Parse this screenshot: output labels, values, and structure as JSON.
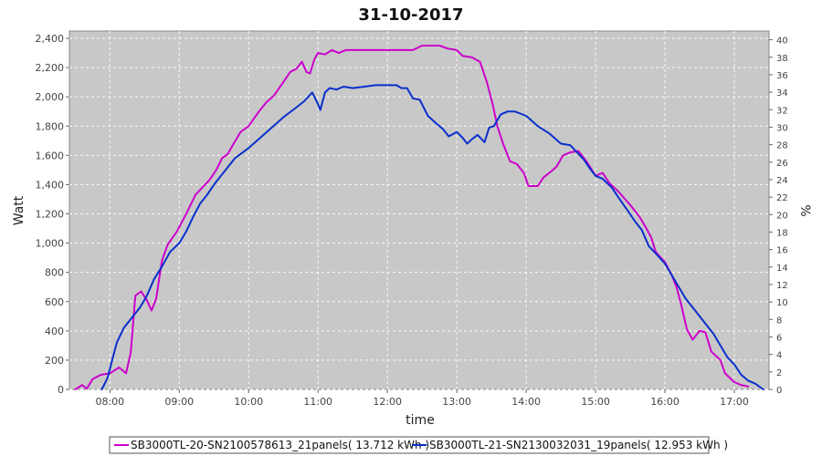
{
  "chart_data": {
    "type": "line",
    "title": "31-10-2017",
    "xlabel": "time",
    "ylabel": "Watt",
    "ylabel_right": "%",
    "xlim": [
      "07:25",
      "17:30"
    ],
    "ylim": [
      0,
      2450
    ],
    "ylim_right": [
      0,
      41
    ],
    "x_ticks": [
      "08:00",
      "09:00",
      "10:00",
      "11:00",
      "12:00",
      "13:00",
      "14:00",
      "15:00",
      "16:00",
      "17:00"
    ],
    "y_ticks": [
      "0",
      "200",
      "400",
      "600",
      "800",
      "1,000",
      "1,200",
      "1,400",
      "1,600",
      "1,800",
      "2,000",
      "2,200",
      "2,400"
    ],
    "y_tick_values": [
      0,
      200,
      400,
      600,
      800,
      1000,
      1200,
      1400,
      1600,
      1800,
      2000,
      2200,
      2400
    ],
    "y_right_ticks": [
      0,
      2,
      4,
      6,
      8,
      10,
      12,
      14,
      16,
      18,
      20,
      22,
      24,
      26,
      28,
      30,
      32,
      34,
      36,
      38,
      40
    ],
    "grid": true,
    "legend_position": "bottom",
    "plot_background": "#c8c8c8",
    "series": [
      {
        "name": "SB3000TL-20-SN2100578613_21panels( 13.712 kWh )",
        "color": "#cc00cc",
        "points": [
          [
            "07:30",
            0
          ],
          [
            "07:36",
            30
          ],
          [
            "07:40",
            5
          ],
          [
            "07:45",
            70
          ],
          [
            "07:52",
            100
          ],
          [
            "08:00",
            110
          ],
          [
            "08:08",
            150
          ],
          [
            "08:14",
            110
          ],
          [
            "08:18",
            250
          ],
          [
            "08:22",
            640
          ],
          [
            "08:27",
            670
          ],
          [
            "08:32",
            610
          ],
          [
            "08:36",
            540
          ],
          [
            "08:40",
            620
          ],
          [
            "08:45",
            880
          ],
          [
            "08:50",
            990
          ],
          [
            "08:58",
            1080
          ],
          [
            "09:06",
            1200
          ],
          [
            "09:14",
            1330
          ],
          [
            "09:20",
            1380
          ],
          [
            "09:26",
            1430
          ],
          [
            "09:32",
            1500
          ],
          [
            "09:37",
            1580
          ],
          [
            "09:42",
            1610
          ],
          [
            "09:47",
            1680
          ],
          [
            "09:53",
            1760
          ],
          [
            "10:00",
            1800
          ],
          [
            "10:08",
            1890
          ],
          [
            "10:15",
            1960
          ],
          [
            "10:22",
            2010
          ],
          [
            "10:30",
            2100
          ],
          [
            "10:36",
            2170
          ],
          [
            "10:41",
            2190
          ],
          [
            "10:46",
            2240
          ],
          [
            "10:50",
            2170
          ],
          [
            "10:53",
            2160
          ],
          [
            "10:57",
            2260
          ],
          [
            "11:00",
            2300
          ],
          [
            "11:06",
            2290
          ],
          [
            "11:12",
            2320
          ],
          [
            "11:18",
            2300
          ],
          [
            "11:24",
            2320
          ],
          [
            "11:40",
            2320
          ],
          [
            "12:00",
            2320
          ],
          [
            "12:22",
            2320
          ],
          [
            "12:30",
            2350
          ],
          [
            "12:45",
            2350
          ],
          [
            "12:52",
            2330
          ],
          [
            "13:00",
            2320
          ],
          [
            "13:05",
            2280
          ],
          [
            "13:13",
            2270
          ],
          [
            "13:20",
            2240
          ],
          [
            "13:26",
            2100
          ],
          [
            "13:31",
            1950
          ],
          [
            "13:35",
            1800
          ],
          [
            "13:40",
            1680
          ],
          [
            "13:46",
            1560
          ],
          [
            "13:52",
            1540
          ],
          [
            "13:58",
            1480
          ],
          [
            "14:02",
            1390
          ],
          [
            "14:10",
            1390
          ],
          [
            "14:15",
            1450
          ],
          [
            "14:20",
            1480
          ],
          [
            "14:26",
            1520
          ],
          [
            "14:32",
            1600
          ],
          [
            "14:38",
            1620
          ],
          [
            "14:45",
            1630
          ],
          [
            "14:52",
            1560
          ],
          [
            "15:00",
            1460
          ],
          [
            "15:06",
            1480
          ],
          [
            "15:12",
            1410
          ],
          [
            "15:20",
            1350
          ],
          [
            "15:30",
            1260
          ],
          [
            "15:38",
            1180
          ],
          [
            "15:44",
            1100
          ],
          [
            "15:48",
            1040
          ],
          [
            "15:52",
            940
          ],
          [
            "16:00",
            870
          ],
          [
            "16:06",
            780
          ],
          [
            "16:10",
            700
          ],
          [
            "16:14",
            580
          ],
          [
            "16:19",
            410
          ],
          [
            "16:24",
            340
          ],
          [
            "16:30",
            400
          ],
          [
            "16:35",
            390
          ],
          [
            "16:40",
            260
          ],
          [
            "16:48",
            200
          ],
          [
            "16:52",
            110
          ],
          [
            "17:00",
            50
          ],
          [
            "17:06",
            30
          ],
          [
            "17:12",
            20
          ]
        ]
      },
      {
        "name": "SB3000TL-21-SN2130032031_19panels( 12.953 kWh )",
        "color": "#0a2fcc",
        "points": [
          [
            "07:53",
            0
          ],
          [
            "07:58",
            80
          ],
          [
            "08:02",
            200
          ],
          [
            "08:06",
            320
          ],
          [
            "08:12",
            420
          ],
          [
            "08:18",
            480
          ],
          [
            "08:26",
            560
          ],
          [
            "08:32",
            640
          ],
          [
            "08:38",
            750
          ],
          [
            "08:45",
            840
          ],
          [
            "08:52",
            940
          ],
          [
            "09:00",
            1000
          ],
          [
            "09:06",
            1080
          ],
          [
            "09:12",
            1180
          ],
          [
            "09:18",
            1270
          ],
          [
            "09:24",
            1330
          ],
          [
            "09:30",
            1400
          ],
          [
            "09:36",
            1460
          ],
          [
            "09:42",
            1520
          ],
          [
            "09:48",
            1580
          ],
          [
            "09:55",
            1620
          ],
          [
            "10:00",
            1650
          ],
          [
            "10:10",
            1720
          ],
          [
            "10:20",
            1790
          ],
          [
            "10:30",
            1860
          ],
          [
            "10:40",
            1920
          ],
          [
            "10:48",
            1970
          ],
          [
            "10:55",
            2030
          ],
          [
            "11:00",
            1950
          ],
          [
            "11:02",
            1910
          ],
          [
            "11:06",
            2030
          ],
          [
            "11:10",
            2060
          ],
          [
            "11:16",
            2050
          ],
          [
            "11:22",
            2070
          ],
          [
            "11:30",
            2060
          ],
          [
            "11:40",
            2070
          ],
          [
            "11:50",
            2080
          ],
          [
            "12:00",
            2080
          ],
          [
            "12:08",
            2080
          ],
          [
            "12:12",
            2060
          ],
          [
            "12:17",
            2060
          ],
          [
            "12:22",
            1990
          ],
          [
            "12:28",
            1980
          ],
          [
            "12:35",
            1870
          ],
          [
            "12:42",
            1820
          ],
          [
            "12:48",
            1780
          ],
          [
            "12:53",
            1730
          ],
          [
            "13:00",
            1760
          ],
          [
            "13:05",
            1720
          ],
          [
            "13:09",
            1680
          ],
          [
            "13:13",
            1710
          ],
          [
            "13:18",
            1740
          ],
          [
            "13:24",
            1690
          ],
          [
            "13:28",
            1790
          ],
          [
            "13:32",
            1800
          ],
          [
            "13:38",
            1880
          ],
          [
            "13:44",
            1900
          ],
          [
            "13:50",
            1900
          ],
          [
            "14:00",
            1870
          ],
          [
            "14:10",
            1800
          ],
          [
            "14:20",
            1750
          ],
          [
            "14:30",
            1680
          ],
          [
            "14:38",
            1670
          ],
          [
            "14:44",
            1620
          ],
          [
            "14:50",
            1570
          ],
          [
            "14:56",
            1500
          ],
          [
            "15:00",
            1460
          ],
          [
            "15:06",
            1440
          ],
          [
            "15:14",
            1380
          ],
          [
            "15:20",
            1310
          ],
          [
            "15:28",
            1220
          ],
          [
            "15:34",
            1150
          ],
          [
            "15:40",
            1090
          ],
          [
            "15:46",
            980
          ],
          [
            "15:52",
            930
          ],
          [
            "16:00",
            860
          ],
          [
            "16:06",
            780
          ],
          [
            "16:12",
            700
          ],
          [
            "16:18",
            620
          ],
          [
            "16:26",
            540
          ],
          [
            "16:34",
            460
          ],
          [
            "16:42",
            380
          ],
          [
            "16:48",
            300
          ],
          [
            "16:54",
            220
          ],
          [
            "17:00",
            170
          ],
          [
            "17:06",
            100
          ],
          [
            "17:12",
            60
          ],
          [
            "17:18",
            40
          ],
          [
            "17:25",
            0
          ]
        ]
      }
    ]
  }
}
